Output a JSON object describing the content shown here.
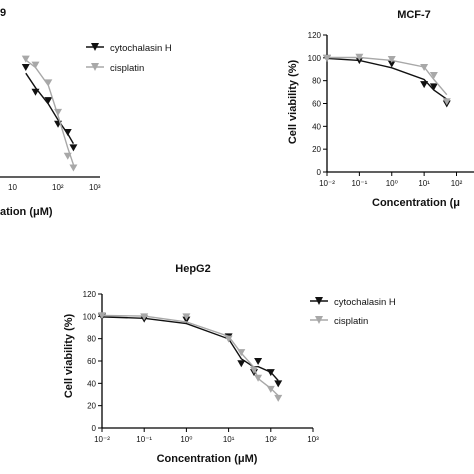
{
  "colors": {
    "cytochalasin": "#111111",
    "cisplatin": "#a8a8a8"
  },
  "chart_data": [
    {
      "id": "left",
      "type": "scatter",
      "title": "9",
      "xlabel": "ation (μM)",
      "ylabel": "",
      "x_scale": "log",
      "xticks": [
        "10",
        "10²",
        "10³"
      ],
      "legend": {
        "position": "top-right",
        "entries": [
          "cytochalasin H",
          "cisplatin"
        ]
      },
      "series": [
        {
          "name": "cytochalasin H",
          "marker": "triangle-down",
          "color": "#111111",
          "x": [
            5,
            10,
            25,
            50,
            100,
            150
          ],
          "y": [
            93,
            72,
            65,
            45,
            38,
            25
          ]
        },
        {
          "name": "cisplatin",
          "marker": "triangle-down",
          "color": "#a8a8a8",
          "x": [
            5,
            10,
            25,
            50,
            100,
            150
          ],
          "y": [
            100,
            95,
            80,
            55,
            18,
            8
          ]
        }
      ]
    },
    {
      "id": "mcf7",
      "type": "scatter",
      "title": "MCF-7",
      "xlabel": "Concentration (μ",
      "ylabel": "Cell viability (%)",
      "x_scale": "log",
      "ylim": [
        0,
        120
      ],
      "yticks": [
        "0",
        "20",
        "40",
        "60",
        "80",
        "100",
        "120"
      ],
      "xticks": [
        "10⁻²",
        "10⁻¹",
        "10⁰",
        "10¹",
        "10²"
      ],
      "series": [
        {
          "name": "cytochalasin H",
          "marker": "triangle-down",
          "color": "#111111",
          "x": [
            0.01,
            0.1,
            1,
            10,
            20,
            50
          ],
          "y": [
            100,
            98,
            95,
            77,
            75,
            60
          ]
        },
        {
          "name": "cisplatin",
          "marker": "triangle-down",
          "color": "#a8a8a8",
          "x": [
            0.01,
            0.1,
            1,
            10,
            20,
            50
          ],
          "y": [
            100,
            101,
            99,
            92,
            85,
            62
          ]
        }
      ]
    },
    {
      "id": "hepg2",
      "type": "scatter",
      "title": "HepG2",
      "xlabel": "Concentration (μM)",
      "ylabel": "Cell viability (%)",
      "x_scale": "log",
      "ylim": [
        0,
        120
      ],
      "yticks": [
        "0",
        "20",
        "40",
        "60",
        "80",
        "100",
        "120"
      ],
      "xticks": [
        "10⁻²",
        "10⁻¹",
        "10⁰",
        "10¹",
        "10²",
        "10³"
      ],
      "legend": {
        "position": "top-right",
        "entries": [
          "cytochalasin H",
          "cisplatin"
        ]
      },
      "series": [
        {
          "name": "cytochalasin H",
          "marker": "triangle-down",
          "color": "#111111",
          "x": [
            0.01,
            0.1,
            1,
            10,
            20,
            40,
            50,
            100,
            150
          ],
          "y": [
            100,
            98,
            97,
            82,
            58,
            50,
            60,
            50,
            40
          ]
        },
        {
          "name": "cisplatin",
          "marker": "triangle-down",
          "color": "#a8a8a8",
          "x": [
            0.01,
            0.1,
            1,
            10,
            20,
            40,
            50,
            100,
            150
          ],
          "y": [
            101,
            100,
            100,
            80,
            68,
            52,
            45,
            35,
            27
          ]
        }
      ]
    }
  ]
}
